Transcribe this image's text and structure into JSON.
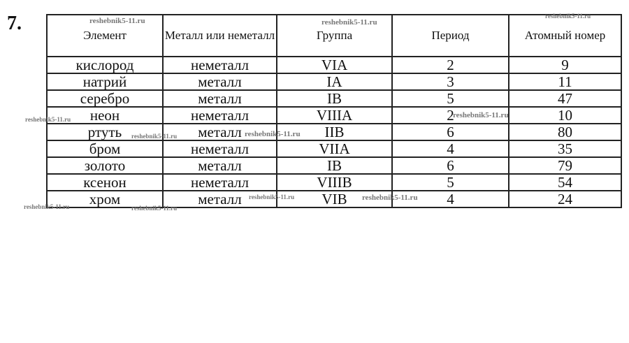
{
  "exercise_number": "7.",
  "table": {
    "headers": [
      "Элемент",
      "Металл или неметалл",
      "Группа",
      "Период",
      "Атомный номер"
    ],
    "rows": [
      [
        "кислород",
        "неметалл",
        "VIA",
        "2",
        "9"
      ],
      [
        "натрий",
        "металл",
        "IA",
        "3",
        "11"
      ],
      [
        "серебро",
        "металл",
        "IB",
        "5",
        "47"
      ],
      [
        "неон",
        "неметалл",
        "VIIIA",
        "2",
        "10"
      ],
      [
        "ртуть",
        "металл",
        "IIB",
        "6",
        "80"
      ],
      [
        "бром",
        "неметалл",
        "VIIA",
        "4",
        "35"
      ],
      [
        "золото",
        "металл",
        "IB",
        "6",
        "79"
      ],
      [
        "ксенон",
        "неметалл",
        "VIIIB",
        "5",
        "54"
      ],
      [
        "хром",
        "металл",
        "VIB",
        "4",
        "24"
      ]
    ]
  },
  "watermark": "reshebnik5-11.ru"
}
